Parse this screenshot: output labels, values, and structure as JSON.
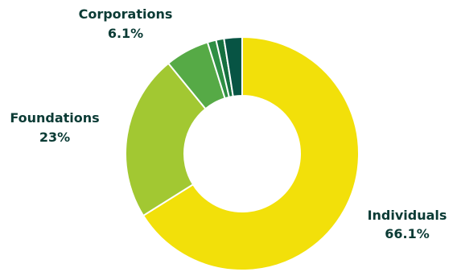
{
  "chart_data": {
    "type": "pie",
    "variant": "donut",
    "title": "",
    "slices": [
      {
        "label": "Individuals",
        "percent_label": "66.1%",
        "value": 66.1,
        "color": "#f2e00a"
      },
      {
        "label": "Foundations",
        "percent_label": "23%",
        "value": 23.0,
        "color": "#a2c832"
      },
      {
        "label": "Corporations",
        "percent_label": "6.1%",
        "value": 6.1,
        "color": "#56aa46"
      },
      {
        "label": "",
        "percent_label": "",
        "value": 1.2,
        "color": "#2f8f44"
      },
      {
        "label": "",
        "percent_label": "",
        "value": 1.1,
        "color": "#16703f"
      },
      {
        "label": "",
        "percent_label": "",
        "value": 2.5,
        "color": "#075444"
      }
    ],
    "label_color": "#0b3b35",
    "legend": "none"
  }
}
